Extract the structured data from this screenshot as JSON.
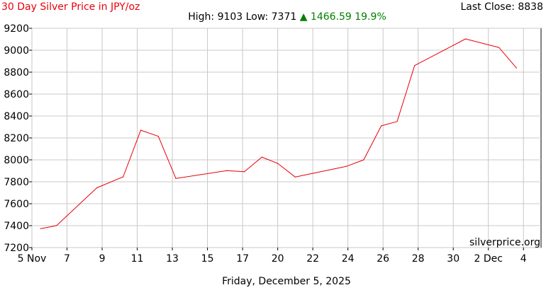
{
  "header": {
    "title": "30 Day Silver Price in JPY/oz",
    "last_close": "Last Close: 8838",
    "high_low": "High: 9103 Low: 7371",
    "change": "▲ 1466.59 19.9%"
  },
  "watermark": "silverprice.org",
  "footer": {
    "date": "Friday, December 5, 2025"
  },
  "colors": {
    "line": "#e8000b",
    "title": "#e8000b",
    "change": "#008000",
    "grid": "#c8c8c8"
  },
  "chart_data": {
    "type": "line",
    "title": "30 Day Silver Price in JPY/oz",
    "xlabel": "",
    "ylabel": "",
    "ylim": [
      7200,
      9200
    ],
    "y_ticks": [
      7200,
      7400,
      7600,
      7800,
      8000,
      8200,
      8400,
      8600,
      8800,
      9000,
      9200
    ],
    "xlim": [
      0,
      29
    ],
    "x_ticks": [
      {
        "day": 0,
        "label": "5 Nov"
      },
      {
        "day": 2,
        "label": "7"
      },
      {
        "day": 4,
        "label": "9"
      },
      {
        "day": 6,
        "label": "11"
      },
      {
        "day": 8,
        "label": "13"
      },
      {
        "day": 10,
        "label": "15"
      },
      {
        "day": 12,
        "label": "17"
      },
      {
        "day": 14,
        "label": "20"
      },
      {
        "day": 16,
        "label": "22"
      },
      {
        "day": 18,
        "label": "24"
      },
      {
        "day": 20,
        "label": "26"
      },
      {
        "day": 22,
        "label": "28"
      },
      {
        "day": 24,
        "label": "30"
      },
      {
        "day": 26,
        "label": "2 Dec"
      },
      {
        "day": 28,
        "label": "4"
      }
    ],
    "grid": true,
    "series": [
      {
        "name": "",
        "color": "#e8000b",
        "points": [
          {
            "x": 0.5,
            "y": 7372
          },
          {
            "x": 1.4,
            "y": 7400
          },
          {
            "x": 3.7,
            "y": 7745
          },
          {
            "x": 5.2,
            "y": 7845
          },
          {
            "x": 6.2,
            "y": 8270
          },
          {
            "x": 7.2,
            "y": 8215
          },
          {
            "x": 8.2,
            "y": 7830
          },
          {
            "x": 11.1,
            "y": 7902
          },
          {
            "x": 12.1,
            "y": 7892
          },
          {
            "x": 13.1,
            "y": 8025
          },
          {
            "x": 14.0,
            "y": 7968
          },
          {
            "x": 15.0,
            "y": 7843
          },
          {
            "x": 17.9,
            "y": 7940
          },
          {
            "x": 18.9,
            "y": 8000
          },
          {
            "x": 19.9,
            "y": 8310
          },
          {
            "x": 20.8,
            "y": 8350
          },
          {
            "x": 21.8,
            "y": 8860
          },
          {
            "x": 24.7,
            "y": 9103
          },
          {
            "x": 26.6,
            "y": 9025
          },
          {
            "x": 27.6,
            "y": 8838
          }
        ]
      }
    ]
  }
}
